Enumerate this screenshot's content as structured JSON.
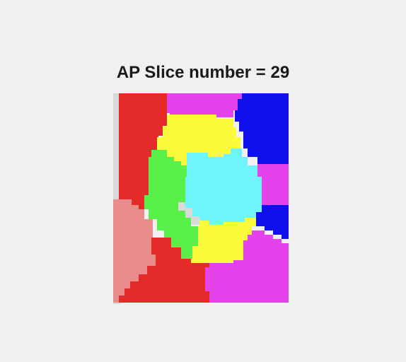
{
  "figure": {
    "title": "AP Slice number = 29"
  },
  "colors": {
    "background": "#f0f0f0",
    "grey": "#d9d9d9",
    "red": "#e52a2a",
    "magenta": "#e442ea",
    "blue": "#1010ee",
    "yellow": "#fbfb3c",
    "green": "#5af04a",
    "cyan": "#6ef4fa",
    "pink": "#ea8c8c"
  },
  "regions": [
    {
      "name": "region-grey-left",
      "color": "grey"
    },
    {
      "name": "region-red-top",
      "color": "red"
    },
    {
      "name": "region-magenta-top",
      "color": "magenta"
    },
    {
      "name": "region-blue-top",
      "color": "blue"
    },
    {
      "name": "region-magenta-right",
      "color": "magenta"
    },
    {
      "name": "region-blue-right",
      "color": "blue"
    },
    {
      "name": "region-magenta-bottom",
      "color": "magenta"
    },
    {
      "name": "region-red-bottom",
      "color": "red"
    },
    {
      "name": "region-pink-left",
      "color": "pink"
    },
    {
      "name": "region-yellow-top",
      "color": "yellow"
    },
    {
      "name": "region-green",
      "color": "green"
    },
    {
      "name": "region-cyan",
      "color": "cyan"
    },
    {
      "name": "region-grey-center",
      "color": "grey"
    },
    {
      "name": "region-yellow-bottom",
      "color": "yellow"
    }
  ]
}
